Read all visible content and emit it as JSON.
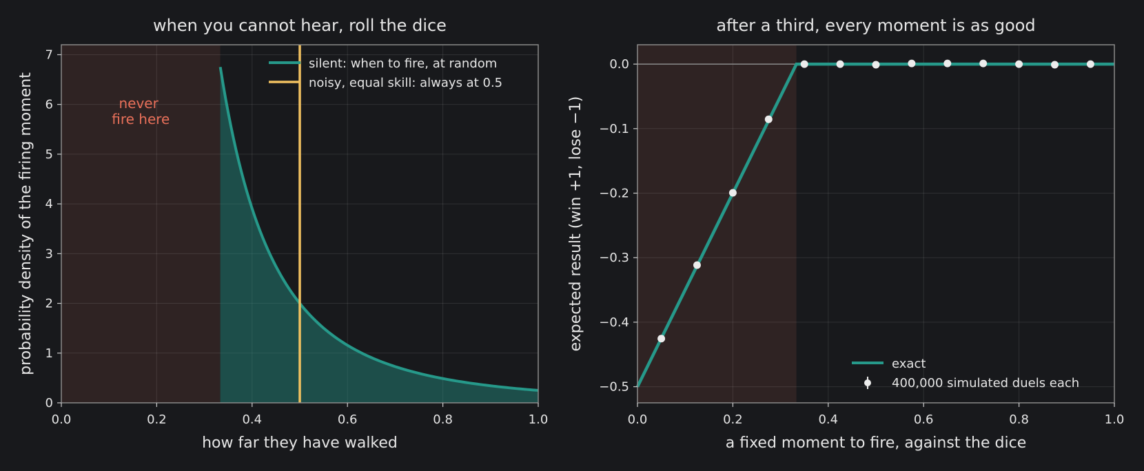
{
  "chart_data": [
    {
      "type": "line",
      "title": "when you cannot hear, roll the dice",
      "xlabel": "how far they have walked",
      "ylabel": "probability density of the firing moment",
      "xlim": [
        0,
        1
      ],
      "ylim": [
        0,
        7.2
      ],
      "xticks": [
        "0.0",
        "0.2",
        "0.4",
        "0.6",
        "0.8",
        "1.0"
      ],
      "yticks": [
        "0",
        "1",
        "2",
        "3",
        "4",
        "5",
        "6",
        "7"
      ],
      "grid": true,
      "legend_position": "top-right",
      "shaded_region": {
        "x": [
          0,
          0.3333
        ],
        "label": [
          "never",
          "fire here"
        ]
      },
      "series": [
        {
          "name": "silent: when to fire, at random",
          "style": "curve-with-fill",
          "x": [
            0.3333,
            0.35,
            0.375,
            0.4,
            0.425,
            0.45,
            0.5,
            0.55,
            0.6,
            0.65,
            0.7,
            0.75,
            0.8,
            0.85,
            0.9,
            0.95,
            1.0
          ],
          "y": [
            6.75,
            5.83,
            4.74,
            3.91,
            3.26,
            2.74,
            2.0,
            1.5,
            1.16,
            0.91,
            0.73,
            0.59,
            0.49,
            0.41,
            0.34,
            0.29,
            0.25
          ]
        },
        {
          "name": "noisy, equal skill: always at 0.5",
          "style": "vertical-line",
          "x": 0.5
        }
      ],
      "colors": {
        "teal": "#26998a",
        "gold": "#f0c060",
        "shade": "#2f2323"
      }
    },
    {
      "type": "line",
      "title": "after a third, every moment is as good",
      "xlabel": "a fixed moment to fire, against the dice",
      "ylabel": "expected result (win +1, lose −1)",
      "xlim": [
        0,
        1
      ],
      "ylim": [
        -0.525,
        0.03
      ],
      "xticks": [
        "0.0",
        "0.2",
        "0.4",
        "0.6",
        "0.8",
        "1.0"
      ],
      "yticks": [
        "0.0",
        "−0.1",
        "−0.2",
        "−0.3",
        "−0.4",
        "−0.5"
      ],
      "grid": true,
      "legend_position": "bottom-right",
      "shaded_region": {
        "x": [
          0,
          0.3333
        ]
      },
      "series": [
        {
          "name": "exact",
          "style": "line",
          "x": [
            0,
            0.3333,
            1.0
          ],
          "y": [
            -0.5,
            0.0,
            0.0
          ]
        },
        {
          "name": "400,000 simulated duels each",
          "style": "points",
          "x": [
            0.05,
            0.125,
            0.2,
            0.275,
            0.35,
            0.425,
            0.5,
            0.575,
            0.65,
            0.725,
            0.8,
            0.875,
            0.95
          ],
          "y": [
            -0.4255,
            -0.3115,
            -0.1995,
            -0.0855,
            0.0,
            0.0,
            -0.001,
            0.001,
            0.001,
            0.001,
            0.0,
            -0.001,
            0.0
          ]
        }
      ],
      "colors": {
        "teal": "#26998a",
        "points": "#ececec",
        "shade": "#2f2323"
      }
    }
  ]
}
